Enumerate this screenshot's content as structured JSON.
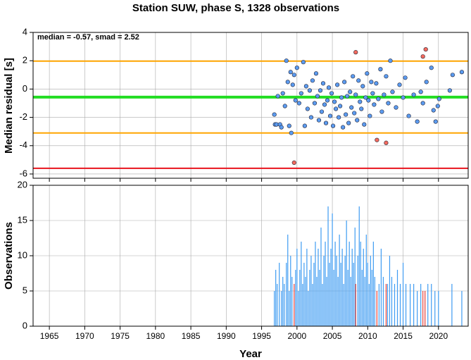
{
  "chart_data": [
    {
      "type": "scatter",
      "title": "Station SUW, phase S, 1328 observations",
      "ylabel": "Median residual [s]",
      "annotation": "median = -0.57, smad = 2.52",
      "xlim": [
        1962.7,
        2024.2
      ],
      "ylim": [
        -6.3,
        4
      ],
      "yticks": [
        -6,
        -4,
        -2,
        0,
        2,
        4
      ],
      "grid": true,
      "hlines": [
        {
          "value": 1.97,
          "color": "#ffa500"
        },
        {
          "value": -0.57,
          "color": "#22dd22"
        },
        {
          "value": -3.1,
          "color": "#ffa500"
        },
        {
          "value": -5.6,
          "color": "#e8141e"
        }
      ],
      "series": [
        {
          "color": "#5b9bf0",
          "x": [
            1996.8,
            1996.9,
            1997.1,
            1997.3,
            1997.6,
            1997.8,
            1998.0,
            1998.3,
            1998.5,
            1998.7,
            1998.9,
            1999.1,
            1999.2,
            1999.4,
            1999.6,
            1999.8,
            2000.0,
            2000.3,
            2000.6,
            2000.9,
            2001.1,
            2001.3,
            2001.5,
            2001.8,
            2002.0,
            2002.2,
            2002.5,
            2002.7,
            2002.9,
            2003.1,
            2003.3,
            2003.5,
            2003.7,
            2003.9,
            2004.1,
            2004.3,
            2004.5,
            2004.7,
            2004.9,
            2005.1,
            2005.3,
            2005.5,
            2005.7,
            2005.9,
            2006.1,
            2006.3,
            2006.5,
            2006.7,
            2006.9,
            2007.1,
            2007.3,
            2007.5,
            2007.7,
            2007.9,
            2008.1,
            2008.3,
            2008.5,
            2008.7,
            2008.9,
            2009.1,
            2009.3,
            2009.5,
            2009.7,
            2009.9,
            2010.1,
            2010.3,
            2010.5,
            2010.7,
            2010.9,
            2011.2,
            2011.5,
            2011.8,
            2012.0,
            2012.3,
            2012.6,
            2012.9,
            2013.2,
            2013.5,
            2014.0,
            2014.5,
            2015.0,
            2015.3,
            2015.8,
            2016.5,
            2017.0,
            2017.5,
            2017.8,
            2018.3,
            2019.0,
            2019.3,
            2019.6,
            2019.9,
            2020.1,
            2021.6,
            2022.0,
            2023.3
          ],
          "values": [
            -1.8,
            -2.5,
            -2.5,
            -0.5,
            -2.5,
            -2.7,
            -0.3,
            -1.2,
            2.0,
            0.5,
            -2.6,
            1.2,
            -3.1,
            0.3,
            1.0,
            -0.8,
            1.5,
            -1.0,
            -0.3,
            1.9,
            -2.6,
            0.2,
            -1.4,
            -0.1,
            -2.0,
            0.6,
            -1.0,
            1.1,
            -0.5,
            -2.2,
            -0.1,
            -1.6,
            0.4,
            -1.1,
            -2.4,
            -0.8,
            0.1,
            -1.9,
            -0.3,
            -2.6,
            -0.9,
            -1.4,
            0.3,
            -2.0,
            -1.2,
            -0.6,
            -2.7,
            0.5,
            -1.8,
            -0.5,
            -2.4,
            -0.2,
            -1.3,
            0.9,
            -1.7,
            -0.4,
            -2.2,
            0.6,
            -0.9,
            -1.4,
            0.2,
            -2.5,
            -0.6,
            1.1,
            -0.8,
            -1.9,
            0.5,
            -0.3,
            -1.1,
            0.4,
            -0.7,
            1.4,
            -1.6,
            -0.4,
            0.9,
            -1.0,
            2.0,
            -0.2,
            -1.3,
            0.3,
            -0.6,
            0.8,
            -1.9,
            -0.4,
            -2.3,
            -0.2,
            -1.0,
            0.5,
            1.5,
            -1.5,
            -2.3,
            -1.2,
            -0.7,
            -0.1,
            1.0,
            1.2
          ]
        },
        {
          "color": "#f36a5e",
          "x": [
            1999.6,
            2008.3,
            2011.3,
            2012.6,
            2017.8,
            2018.2
          ],
          "values": [
            -5.2,
            2.6,
            -3.6,
            -3.8,
            2.3,
            2.8
          ]
        }
      ]
    },
    {
      "type": "bar",
      "ylabel": "Observations",
      "xlabel": "Year",
      "xlim": [
        1962.7,
        2024.2
      ],
      "ylim": [
        0,
        20
      ],
      "yticks": [
        0,
        5,
        10,
        15,
        20
      ],
      "xticks": [
        1965,
        1970,
        1975,
        1980,
        1985,
        1990,
        1995,
        2000,
        2005,
        2010,
        2015,
        2020
      ],
      "grid": true,
      "series": [
        {
          "color": "#3f9cf2",
          "x": [
            1996.8,
            1997.0,
            1997.2,
            1997.5,
            1997.8,
            1998.0,
            1998.2,
            1998.5,
            1998.7,
            1998.9,
            1999.1,
            1999.3,
            1999.8,
            2000.0,
            2000.2,
            2000.4,
            2000.6,
            2000.8,
            2001.0,
            2001.2,
            2001.4,
            2001.6,
            2001.8,
            2002.0,
            2002.2,
            2002.4,
            2002.6,
            2002.8,
            2003.0,
            2003.2,
            2003.4,
            2003.6,
            2003.8,
            2004.0,
            2004.2,
            2004.4,
            2004.6,
            2004.8,
            2005.0,
            2005.2,
            2005.4,
            2005.6,
            2005.8,
            2006.0,
            2006.2,
            2006.4,
            2006.6,
            2006.8,
            2007.0,
            2007.2,
            2007.4,
            2007.6,
            2007.8,
            2008.0,
            2008.2,
            2008.6,
            2008.8,
            2009.0,
            2009.2,
            2009.4,
            2009.6,
            2009.8,
            2010.0,
            2010.2,
            2010.4,
            2010.6,
            2010.8,
            2011.0,
            2011.6,
            2011.9,
            2012.2,
            2012.8,
            2013.1,
            2013.4,
            2013.8,
            2014.2,
            2014.6,
            2015.0,
            2015.4,
            2016.0,
            2016.5,
            2017.0,
            2017.5,
            2018.5,
            2019.0,
            2019.5,
            2020.0,
            2021.9,
            2023.3
          ],
          "values": [
            5,
            8,
            6,
            9,
            5,
            7,
            6,
            9,
            13,
            5,
            10,
            7,
            8,
            11,
            5,
            8,
            12,
            6,
            9,
            7,
            11,
            5,
            8,
            10,
            6,
            9,
            12,
            7,
            11,
            8,
            14,
            6,
            10,
            12,
            7,
            17,
            9,
            11,
            16,
            8,
            12,
            10,
            7,
            13,
            9,
            11,
            6,
            10,
            15,
            8,
            12,
            7,
            11,
            9,
            14,
            10,
            17,
            12,
            8,
            11,
            7,
            13,
            9,
            6,
            10,
            8,
            12,
            7,
            6,
            11,
            7,
            6,
            10,
            7,
            6,
            8,
            6,
            9,
            6,
            6,
            6,
            5,
            6,
            6,
            6,
            5,
            5,
            6,
            5
          ]
        },
        {
          "color": "#e8423a",
          "x": [
            1999.6,
            2008.3,
            2011.3,
            2012.6,
            2017.8,
            2018.1
          ],
          "values": [
            6,
            6,
            5,
            6,
            5,
            5
          ]
        }
      ]
    }
  ]
}
